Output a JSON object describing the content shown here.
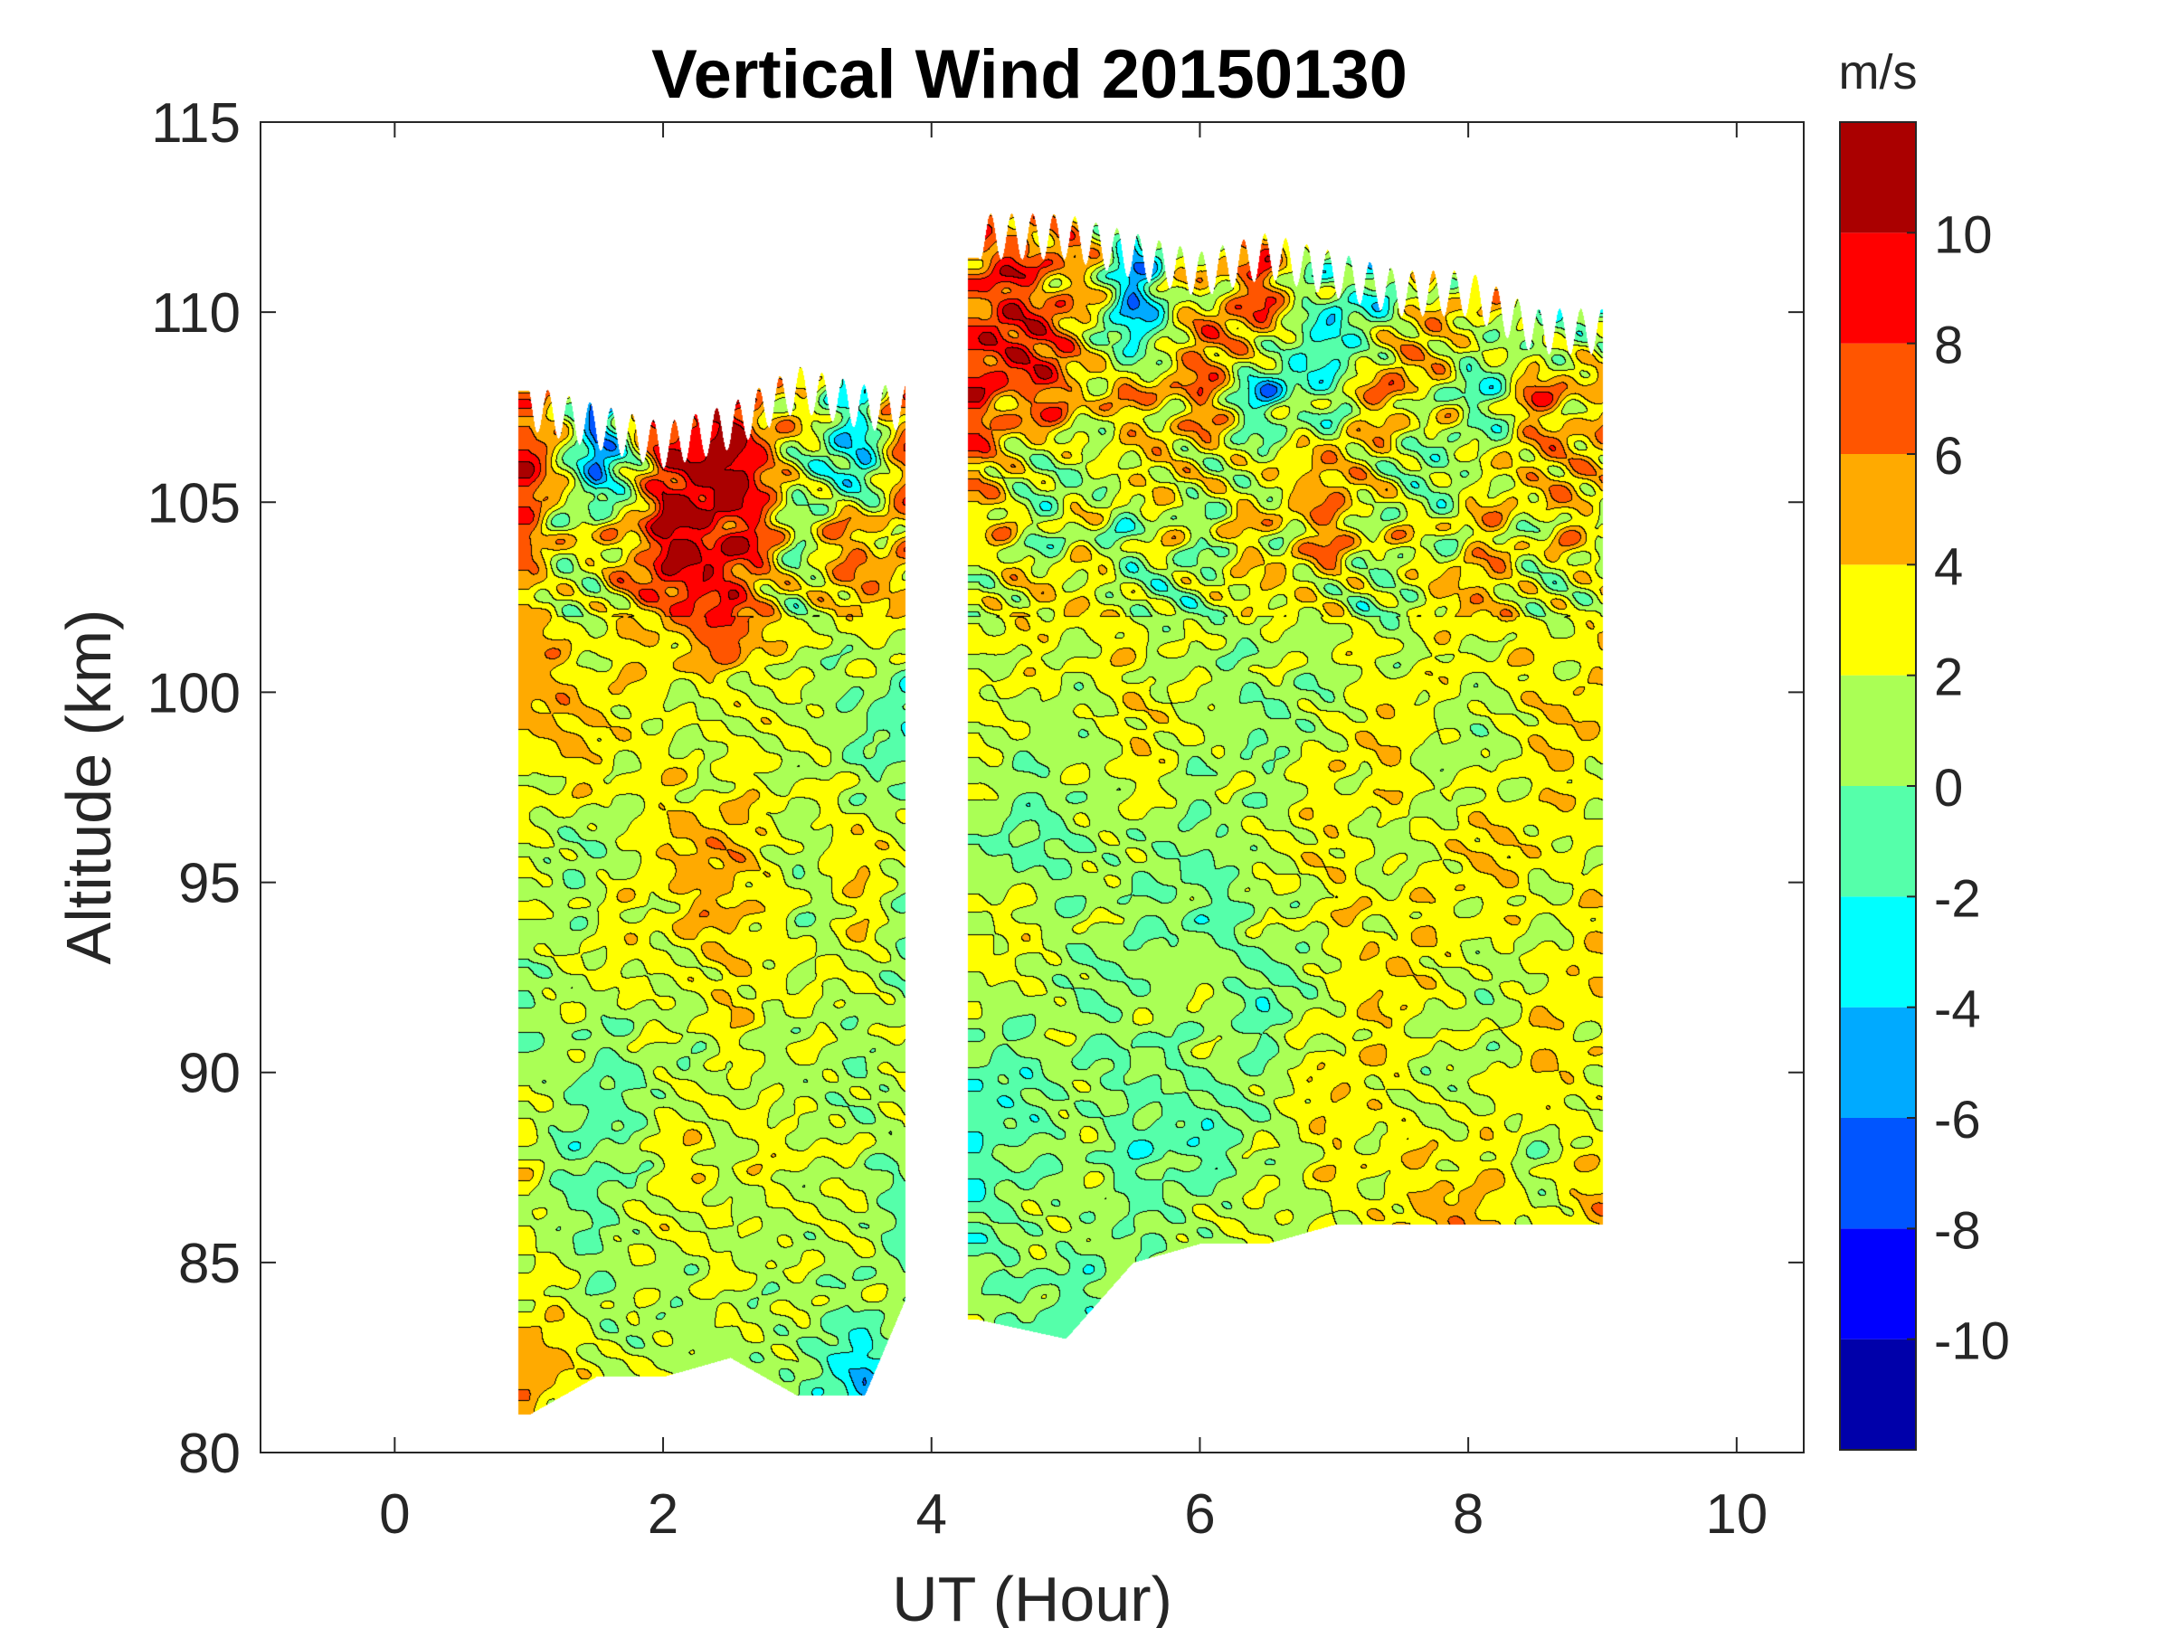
{
  "chart_data": {
    "type": "heatmap",
    "subtype": "filled-contour",
    "title": "Vertical Wind 20150130",
    "xlabel": "UT (Hour)",
    "ylabel": "Altitude (km)",
    "xlim": [
      -1,
      10.5
    ],
    "ylim": [
      80,
      115
    ],
    "xticks": [
      0,
      2,
      4,
      6,
      8,
      10
    ],
    "yticks": [
      80,
      85,
      90,
      95,
      100,
      105,
      110,
      115
    ],
    "colorbar": {
      "label": "m/s",
      "range": [
        -12,
        12
      ],
      "ticks": [
        -10,
        -8,
        -6,
        -4,
        -2,
        0,
        2,
        4,
        6,
        8,
        10
      ],
      "levels": [
        -12,
        -10,
        -8,
        -6,
        -4,
        -2,
        0,
        2,
        4,
        6,
        8,
        10,
        12
      ],
      "colors": [
        "#0000aa",
        "#0000ff",
        "#0055ff",
        "#00aaff",
        "#00ffff",
        "#55ffaa",
        "#aaff55",
        "#ffff00",
        "#ffaa00",
        "#ff5500",
        "#ff0000",
        "#aa0000"
      ]
    },
    "segments": [
      {
        "x": [
          1.0,
          1.5,
          2.0,
          2.5,
          3.0,
          3.5,
          3.8
        ],
        "top": [
          107.5,
          107,
          106.5,
          107,
          108,
          107.5,
          107.5
        ],
        "bottom": [
          81,
          82,
          82,
          82.5,
          81.5,
          81.5,
          84
        ],
        "altitudes": [
          106,
          104,
          102,
          100,
          98,
          96,
          94,
          92,
          90,
          88,
          86,
          84,
          82
        ],
        "values": [
          [
            8,
            -6,
            10,
            10,
            2,
            -2,
            6
          ],
          [
            6,
            2,
            10,
            10,
            2,
            6,
            4
          ],
          [
            5,
            2,
            4,
            10,
            2,
            2,
            4
          ],
          [
            5,
            3,
            3,
            2,
            1,
            1,
            -1
          ],
          [
            3,
            3,
            3,
            2,
            2,
            1,
            -1
          ],
          [
            2,
            1,
            3,
            5,
            2,
            3,
            1
          ],
          [
            1,
            2,
            3,
            5,
            1,
            3,
            1
          ],
          [
            1,
            1,
            2,
            4,
            1,
            2,
            1
          ],
          [
            1,
            0,
            1,
            1,
            2,
            1,
            1
          ],
          [
            2,
            -1,
            3,
            2,
            3,
            1,
            1
          ],
          [
            3,
            -1,
            2,
            3,
            1,
            1,
            -1
          ],
          [
            3,
            1,
            1,
            2,
            1,
            1,
            1
          ],
          [
            5,
            2,
            3,
            -1,
            1,
            -4,
            1
          ]
        ]
      },
      {
        "x": [
          4.35,
          5.0,
          5.5,
          6.0,
          6.5,
          7.0,
          7.5,
          8.0,
          8.5,
          9.0
        ],
        "top": [
          112,
          112,
          111.5,
          111,
          111.5,
          111,
          110.5,
          110.5,
          109.5,
          109.5
        ],
        "bottom": [
          83.5,
          83,
          85,
          85.5,
          85.5,
          86,
          86,
          86,
          86,
          86
        ],
        "altitudes": [
          110,
          108,
          106,
          104,
          102,
          100,
          98,
          96,
          94,
          92,
          90,
          88,
          86,
          84
        ],
        "values": [
          [
            8,
            6,
            -4,
            4,
            6,
            -2,
            1,
            4,
            1,
            -2
          ],
          [
            8,
            6,
            4,
            6,
            -4,
            1,
            6,
            -2,
            6,
            4
          ],
          [
            5,
            2,
            1,
            3,
            4,
            3,
            1,
            3,
            2,
            5
          ],
          [
            3,
            1,
            1,
            2,
            3,
            5,
            2,
            3,
            3,
            3
          ],
          [
            3,
            2,
            3,
            1,
            1,
            3,
            1,
            3,
            3,
            3
          ],
          [
            2,
            2,
            3,
            1,
            1,
            1,
            3,
            2,
            3,
            3
          ],
          [
            1,
            1,
            3,
            1,
            1,
            3,
            3,
            1,
            3,
            3
          ],
          [
            1,
            -1,
            1,
            1,
            1,
            3,
            2,
            3,
            3,
            3
          ],
          [
            3,
            1,
            1,
            -1,
            1,
            3,
            3,
            3,
            2,
            3
          ],
          [
            1,
            1,
            1,
            1,
            -1,
            3,
            3,
            1,
            3,
            3
          ],
          [
            -1,
            1,
            -1,
            1,
            1,
            3,
            3,
            1,
            3,
            3
          ],
          [
            -1,
            1,
            -1,
            -1,
            1,
            3,
            3,
            3,
            1,
            3
          ],
          [
            -1,
            1,
            1,
            1,
            1,
            3,
            3,
            5,
            3,
            5
          ],
          [
            1,
            -1,
            1,
            1,
            1,
            3,
            3,
            3,
            3,
            3
          ]
        ]
      }
    ]
  }
}
